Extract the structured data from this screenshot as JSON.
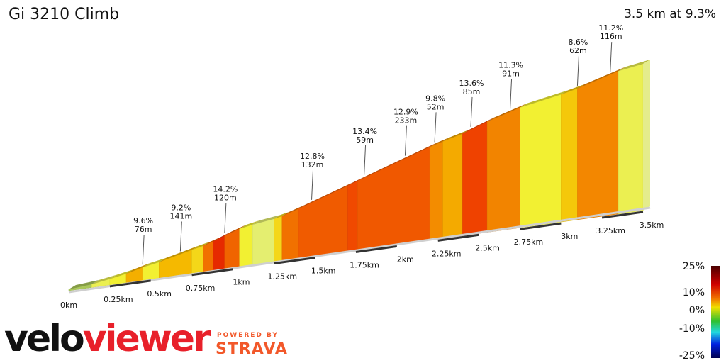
{
  "header": {
    "title": "Gi 3210 Climb",
    "summary": "3.5 km at 9.3%"
  },
  "branding": {
    "logo_a": "velo",
    "logo_b": "viewer",
    "powered_by": "POWERED BY",
    "strava": "STRAVA"
  },
  "chart_data": {
    "type": "area",
    "title": "Gi 3210 Climb",
    "xlabel": "",
    "ylabel": "",
    "x_unit": "km",
    "xlim": [
      0,
      3.5
    ],
    "x_ticks": [
      "0km",
      "0.25km",
      "0.5km",
      "0.75km",
      "1km",
      "1.25km",
      "1.5km",
      "1.75km",
      "2km",
      "2.25km",
      "2.5km",
      "2.75km",
      "3km",
      "3.25km",
      "3.5km"
    ],
    "segments": [
      {
        "from": 0,
        "to": 0.14,
        "grade": 3
      },
      {
        "from": 0.14,
        "to": 0.25,
        "grade": 6
      },
      {
        "from": 0.25,
        "to": 0.35,
        "grade": 7
      },
      {
        "from": 0.35,
        "to": 0.45,
        "grade": 9.6
      },
      {
        "from": 0.45,
        "to": 0.55,
        "grade": 7
      },
      {
        "from": 0.55,
        "to": 0.75,
        "grade": 9.2
      },
      {
        "from": 0.75,
        "to": 0.82,
        "grade": 8
      },
      {
        "from": 0.82,
        "to": 0.88,
        "grade": 12
      },
      {
        "from": 0.88,
        "to": 0.95,
        "grade": 14.2
      },
      {
        "from": 0.95,
        "to": 1.04,
        "grade": 12.5
      },
      {
        "from": 1.04,
        "to": 1.12,
        "grade": 7
      },
      {
        "from": 1.12,
        "to": 1.25,
        "grade": 5
      },
      {
        "from": 1.25,
        "to": 1.3,
        "grade": 8
      },
      {
        "from": 1.3,
        "to": 1.4,
        "grade": 12
      },
      {
        "from": 1.4,
        "to": 1.7,
        "grade": 12.8
      },
      {
        "from": 1.7,
        "to": 1.76,
        "grade": 13.4
      },
      {
        "from": 1.76,
        "to": 2.2,
        "grade": 12.9
      },
      {
        "from": 2.2,
        "to": 2.28,
        "grade": 11
      },
      {
        "from": 2.28,
        "to": 2.4,
        "grade": 9.8
      },
      {
        "from": 2.4,
        "to": 2.55,
        "grade": 13.6
      },
      {
        "from": 2.55,
        "to": 2.75,
        "grade": 11.3
      },
      {
        "from": 2.75,
        "to": 3.0,
        "grade": 7
      },
      {
        "from": 3.0,
        "to": 3.1,
        "grade": 8.6
      },
      {
        "from": 3.1,
        "to": 3.35,
        "grade": 11.2
      },
      {
        "from": 3.35,
        "to": 3.5,
        "grade": 6
      }
    ],
    "annotations": [
      {
        "km": 0.45,
        "grade": "9.6%",
        "length": "76m"
      },
      {
        "km": 0.68,
        "grade": "9.2%",
        "length": "141m"
      },
      {
        "km": 0.95,
        "grade": "14.2%",
        "length": "120m"
      },
      {
        "km": 1.48,
        "grade": "12.8%",
        "length": "132m"
      },
      {
        "km": 1.8,
        "grade": "13.4%",
        "length": "59m"
      },
      {
        "km": 2.05,
        "grade": "12.9%",
        "length": "233m"
      },
      {
        "km": 2.23,
        "grade": "9.8%",
        "length": "52m"
      },
      {
        "km": 2.45,
        "grade": "13.6%",
        "length": "85m"
      },
      {
        "km": 2.69,
        "grade": "11.3%",
        "length": "91m"
      },
      {
        "km": 3.1,
        "grade": "8.6%",
        "length": "62m"
      },
      {
        "km": 3.3,
        "grade": "11.2%",
        "length": "116m"
      }
    ],
    "legend": {
      "placement": "bottom-right",
      "labels": [
        "25%",
        "10%",
        "0%",
        "-10%",
        "-25%"
      ],
      "colors": [
        "#5a0000",
        "#e00000",
        "#f0e000",
        "#30c030",
        "#20d0e0",
        "#0010e0",
        "#000060"
      ]
    }
  }
}
